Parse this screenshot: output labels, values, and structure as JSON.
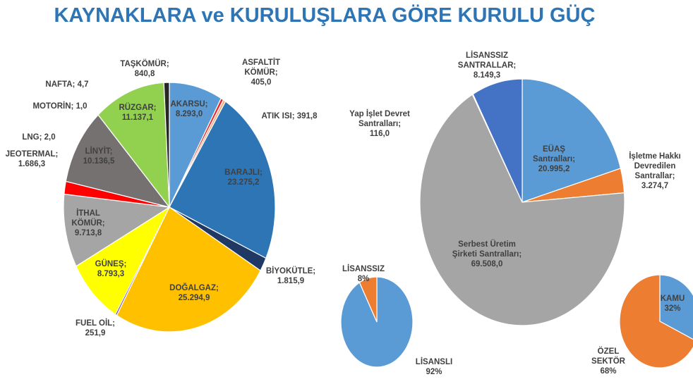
{
  "title": "KAYNAKLARA ve KURULUŞLARA GÖRE KURULU GÜÇ",
  "chart_data": [
    {
      "type": "pie",
      "categories": [
        "AKARSU;",
        "ASFALTİT KÖMÜR;",
        "ATIK ISI;",
        "BARAJLI;",
        "BİYOKÜTLE;",
        "DOĞALGAZ;",
        "FUEL OİL;",
        "GÜNEŞ;",
        "İTHAL KÖMÜR;",
        "JEOTERMAL;",
        "LNG;",
        "LİNYİT;",
        "MOTORİN;",
        "NAFTA;",
        "RÜZGAR;",
        "TAŞKÖMÜR;"
      ],
      "values": [
        8293.0,
        405.0,
        391.8,
        23275.2,
        1815.9,
        25294.9,
        251.9,
        8793.3,
        9713.8,
        1686.3,
        2.0,
        10136.5,
        1.0,
        4.7,
        11137.1,
        840.8
      ],
      "value_labels": [
        "8.293,0",
        "405,0",
        "391,8",
        "23.275,2",
        "1.815,9",
        "25.294,9",
        "251,9",
        "8.793,3",
        "9.713,8",
        "1.686,3",
        "2,0",
        "10.136,5",
        "1,0",
        "4,7",
        "11.137,1",
        "840,8"
      ],
      "colors": [
        "#5b9bd5",
        "#e8262b",
        "#f4b183",
        "#2e75b6",
        "#1f3864",
        "#ffc000",
        "#7030a0",
        "#ffff00",
        "#a5a5a5",
        "#ff0000",
        "#111111",
        "#757171",
        "#333333",
        "#444444",
        "#92d050",
        "#262626"
      ]
    },
    {
      "type": "pie",
      "categories": [
        "EÜAŞ Santralları;",
        "İşletme Hakkı Devredilen Santrallar;",
        "Serbest Üretim Şirketi Santralları;",
        "Yap İşlet Devret Santralları;",
        "LİSANSSIZ SANTRALLAR;"
      ],
      "values": [
        20995.2,
        3274.7,
        69508.0,
        116.0,
        8149.3
      ],
      "value_labels": [
        "20.995,2",
        "3.274,7",
        "69.508,0",
        "116,0",
        "8.149,3"
      ],
      "colors": [
        "#5b9bd5",
        "#ed7d31",
        "#a5a5a5",
        "#ffc000",
        "#4472c4"
      ]
    },
    {
      "type": "pie",
      "categories": [
        "LİSANSLI",
        "LİSANSSIZ"
      ],
      "values": [
        92,
        8
      ],
      "value_labels": [
        "92%",
        "8%"
      ],
      "colors": [
        "#5b9bd5",
        "#ed7d31"
      ]
    },
    {
      "type": "pie",
      "categories": [
        "KAMU",
        "ÖZEL SEKTÖR"
      ],
      "values": [
        32,
        68
      ],
      "value_labels": [
        "32%",
        "68%"
      ],
      "colors": [
        "#5b9bd5",
        "#ed7d31"
      ]
    }
  ]
}
